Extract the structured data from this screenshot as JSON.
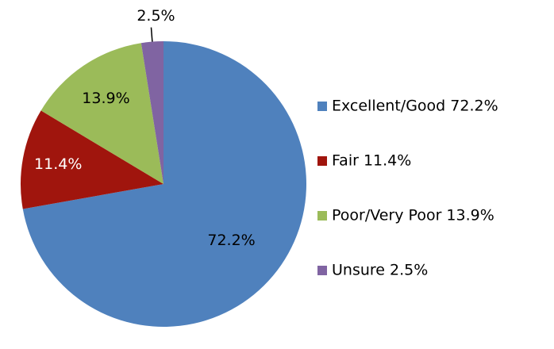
{
  "chart_data": {
    "type": "pie",
    "categories": [
      "Excellent/Good 72.2%",
      "Fair 11.4%",
      "Poor/Very Poor 13.9%",
      "Unsure 2.5%"
    ],
    "values": [
      72.2,
      11.4,
      13.9,
      2.5
    ],
    "value_labels": [
      "72.2%",
      "11.4%",
      "13.9%",
      "2.5%"
    ],
    "colors": [
      "#4f81bd",
      "#a0150d",
      "#9bbb59",
      "#8064a2"
    ],
    "legend": "right"
  }
}
